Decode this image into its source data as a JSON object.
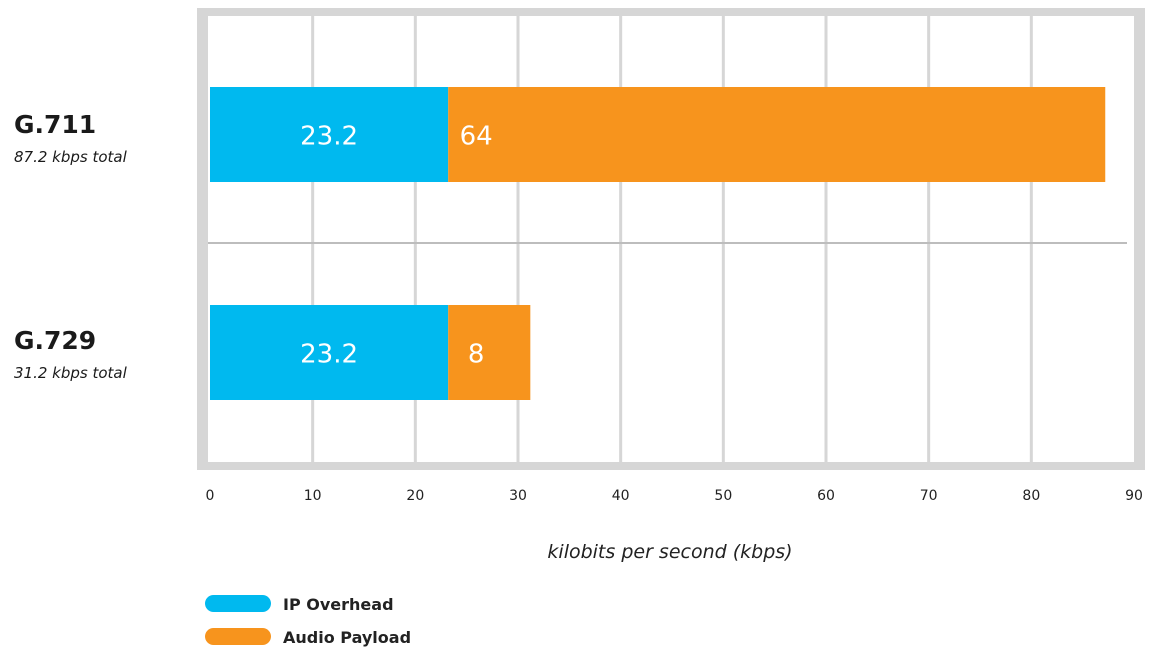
{
  "chart_data": {
    "type": "bar",
    "orientation": "horizontal",
    "stacked": true,
    "categories": [
      "G.711",
      "G.729"
    ],
    "category_subtitles": [
      "87.2 kbps total",
      "31.2 kbps total"
    ],
    "series": [
      {
        "name": "IP Overhead",
        "color": "#00b9ef",
        "values": [
          23.2,
          23.2
        ],
        "labels": [
          "23.2",
          "23.2"
        ]
      },
      {
        "name": "Audio Payload",
        "color": "#f7941d",
        "values": [
          64,
          8
        ],
        "labels": [
          "64",
          "8"
        ]
      }
    ],
    "xlabel": "kilobits per second (kbps)",
    "xlim": [
      0,
      90
    ],
    "xticks": [
      "0",
      "10",
      "20",
      "30",
      "40",
      "50",
      "60",
      "70",
      "80",
      "90"
    ],
    "grid": true,
    "legend": "bottom-left"
  }
}
